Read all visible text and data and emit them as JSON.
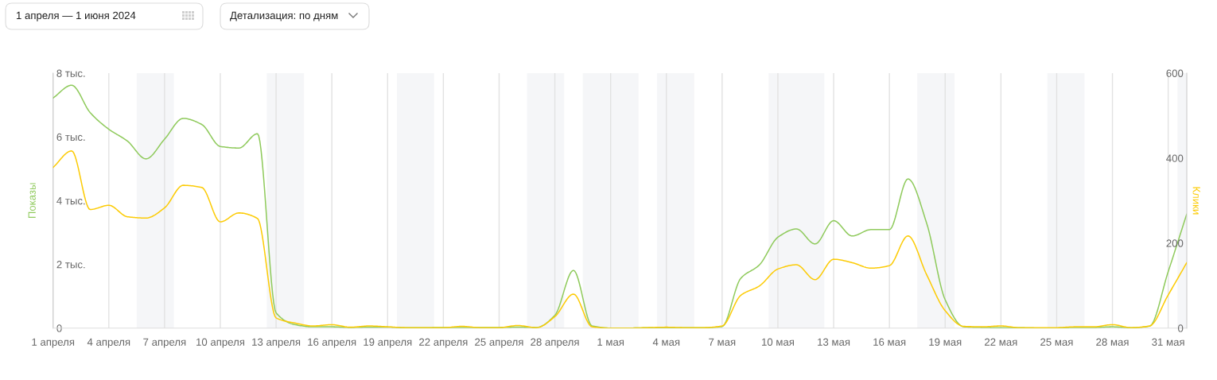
{
  "chart_data": {
    "type": "line",
    "ylabel": "Показы",
    "y2label": "Клики",
    "annotations": [
      "1 апреля — 1 июня 2024",
      "Детализация: по дням"
    ],
    "x": [
      "2024-04-01",
      "2024-04-02",
      "2024-04-03",
      "2024-04-04",
      "2024-04-05",
      "2024-04-06",
      "2024-04-07",
      "2024-04-08",
      "2024-04-09",
      "2024-04-10",
      "2024-04-11",
      "2024-04-12",
      "2024-04-13",
      "2024-04-14",
      "2024-04-15",
      "2024-04-16",
      "2024-04-17",
      "2024-04-18",
      "2024-04-19",
      "2024-04-20",
      "2024-04-21",
      "2024-04-22",
      "2024-04-23",
      "2024-04-24",
      "2024-04-25",
      "2024-04-26",
      "2024-04-27",
      "2024-04-28",
      "2024-04-29",
      "2024-04-30",
      "2024-05-01",
      "2024-05-02",
      "2024-05-03",
      "2024-05-04",
      "2024-05-05",
      "2024-05-06",
      "2024-05-07",
      "2024-05-08",
      "2024-05-09",
      "2024-05-10",
      "2024-05-11",
      "2024-05-12",
      "2024-05-13",
      "2024-05-14",
      "2024-05-15",
      "2024-05-16",
      "2024-05-17",
      "2024-05-18",
      "2024-05-19",
      "2024-05-20",
      "2024-05-21",
      "2024-05-22",
      "2024-05-23",
      "2024-05-24",
      "2024-05-25",
      "2024-05-26",
      "2024-05-27",
      "2024-05-28",
      "2024-05-29",
      "2024-05-30",
      "2024-05-31",
      "2024-06-01"
    ],
    "xlim": [
      "2024-04-01",
      "2024-06-01"
    ],
    "xticks": [
      {
        "value": "2024-04-01",
        "label": "1 апреля"
      },
      {
        "value": "2024-04-04",
        "label": "4 апреля"
      },
      {
        "value": "2024-04-07",
        "label": "7 апреля"
      },
      {
        "value": "2024-04-10",
        "label": "10 апреля"
      },
      {
        "value": "2024-04-13",
        "label": "13 апреля"
      },
      {
        "value": "2024-04-16",
        "label": "16 апреля"
      },
      {
        "value": "2024-04-19",
        "label": "19 апреля"
      },
      {
        "value": "2024-04-22",
        "label": "22 апреля"
      },
      {
        "value": "2024-04-25",
        "label": "25 апреля"
      },
      {
        "value": "2024-04-28",
        "label": "28 апреля"
      },
      {
        "value": "2024-05-01",
        "label": "1 мая"
      },
      {
        "value": "2024-05-04",
        "label": "4 мая"
      },
      {
        "value": "2024-05-07",
        "label": "7 мая"
      },
      {
        "value": "2024-05-10",
        "label": "10 мая"
      },
      {
        "value": "2024-05-13",
        "label": "13 мая"
      },
      {
        "value": "2024-05-16",
        "label": "16 мая"
      },
      {
        "value": "2024-05-19",
        "label": "19 мая"
      },
      {
        "value": "2024-05-22",
        "label": "22 мая"
      },
      {
        "value": "2024-05-25",
        "label": "25 мая"
      },
      {
        "value": "2024-05-28",
        "label": "28 мая"
      },
      {
        "value": "2024-05-31",
        "label": "31 мая"
      }
    ],
    "ylim": [
      0,
      8
    ],
    "yticks": [
      0,
      {
        "value": 2,
        "label": "2 тыс."
      },
      {
        "value": 4,
        "label": "4 тыс."
      },
      {
        "value": 6,
        "label": "6 тыс."
      },
      {
        "value": 8,
        "label": "8 тыс."
      }
    ],
    "y2lim": [
      0,
      600
    ],
    "y2ticks": [
      0,
      200,
      400,
      600
    ],
    "grid": "x",
    "bands": [
      {
        "axis": "x",
        "from": "2024-04-05T12:00",
        "to": "2024-04-07T12:00",
        "color": "#f5f6f8"
      },
      {
        "axis": "x",
        "from": "2024-04-12T12:00",
        "to": "2024-04-14T12:00",
        "color": "#f5f6f8"
      },
      {
        "axis": "x",
        "from": "2024-04-19T12:00",
        "to": "2024-04-21T12:00",
        "color": "#f5f6f8"
      },
      {
        "axis": "x",
        "from": "2024-04-26T12:00",
        "to": "2024-04-28T12:00",
        "color": "#f5f6f8"
      },
      {
        "axis": "x",
        "from": "2024-04-29T12:00",
        "to": "2024-05-02T12:00",
        "color": "#f5f6f8"
      },
      {
        "axis": "x",
        "from": "2024-05-03T12:00",
        "to": "2024-05-05T12:00",
        "color": "#f5f6f8"
      },
      {
        "axis": "x",
        "from": "2024-05-09T12:00",
        "to": "2024-05-12T12:00",
        "color": "#f5f6f8"
      },
      {
        "axis": "x",
        "from": "2024-05-17T12:00",
        "to": "2024-05-19T12:00",
        "color": "#f5f6f8"
      },
      {
        "axis": "x",
        "from": "2024-05-24T12:00",
        "to": "2024-05-26T12:00",
        "color": "#f5f6f8"
      },
      {
        "axis": "x",
        "from": "2024-05-31T12:00",
        "to": "2024-06-01",
        "color": "#f5f6f8"
      }
    ],
    "series": [
      {
        "color": "#8fca5c",
        "values": [
          7.22,
          7.62,
          6.76,
          6.24,
          5.87,
          5.31,
          5.93,
          6.58,
          6.39,
          5.7,
          5.65,
          6.1,
          0.48,
          0.11,
          0.04,
          0.04,
          0.02,
          0.03,
          0.03,
          0.01,
          0.01,
          0.02,
          0.02,
          0.02,
          0.02,
          0.03,
          0.02,
          0.4,
          1.81,
          0.07,
          0,
          0,
          0.01,
          0,
          0.01,
          0.01,
          0.05,
          1.56,
          1.98,
          2.85,
          3.11,
          2.64,
          3.37,
          2.89,
          3.09,
          3.09,
          4.68,
          3.3,
          0.89,
          0.04,
          0.02,
          0.01,
          0.01,
          0,
          0,
          0.02,
          0.02,
          0.04,
          0.01,
          0.06,
          1.77,
          3.58
        ]
      },
      {
        "color": "#fccb05",
        "axis": "y2",
        "values": [
          378,
          417,
          279,
          289,
          262,
          259,
          283,
          336,
          331,
          250,
          271,
          258,
          24,
          12,
          5,
          8,
          2,
          5,
          3,
          1,
          1,
          1,
          4,
          1,
          1,
          6,
          1,
          27,
          80,
          3,
          0,
          0,
          1,
          2,
          1,
          1,
          5,
          77,
          99,
          139,
          149,
          114,
          162,
          154,
          141,
          147,
          217,
          126,
          41,
          4,
          3,
          5,
          1,
          1,
          1,
          3,
          3,
          8,
          1,
          5,
          78,
          154
        ]
      }
    ]
  }
}
